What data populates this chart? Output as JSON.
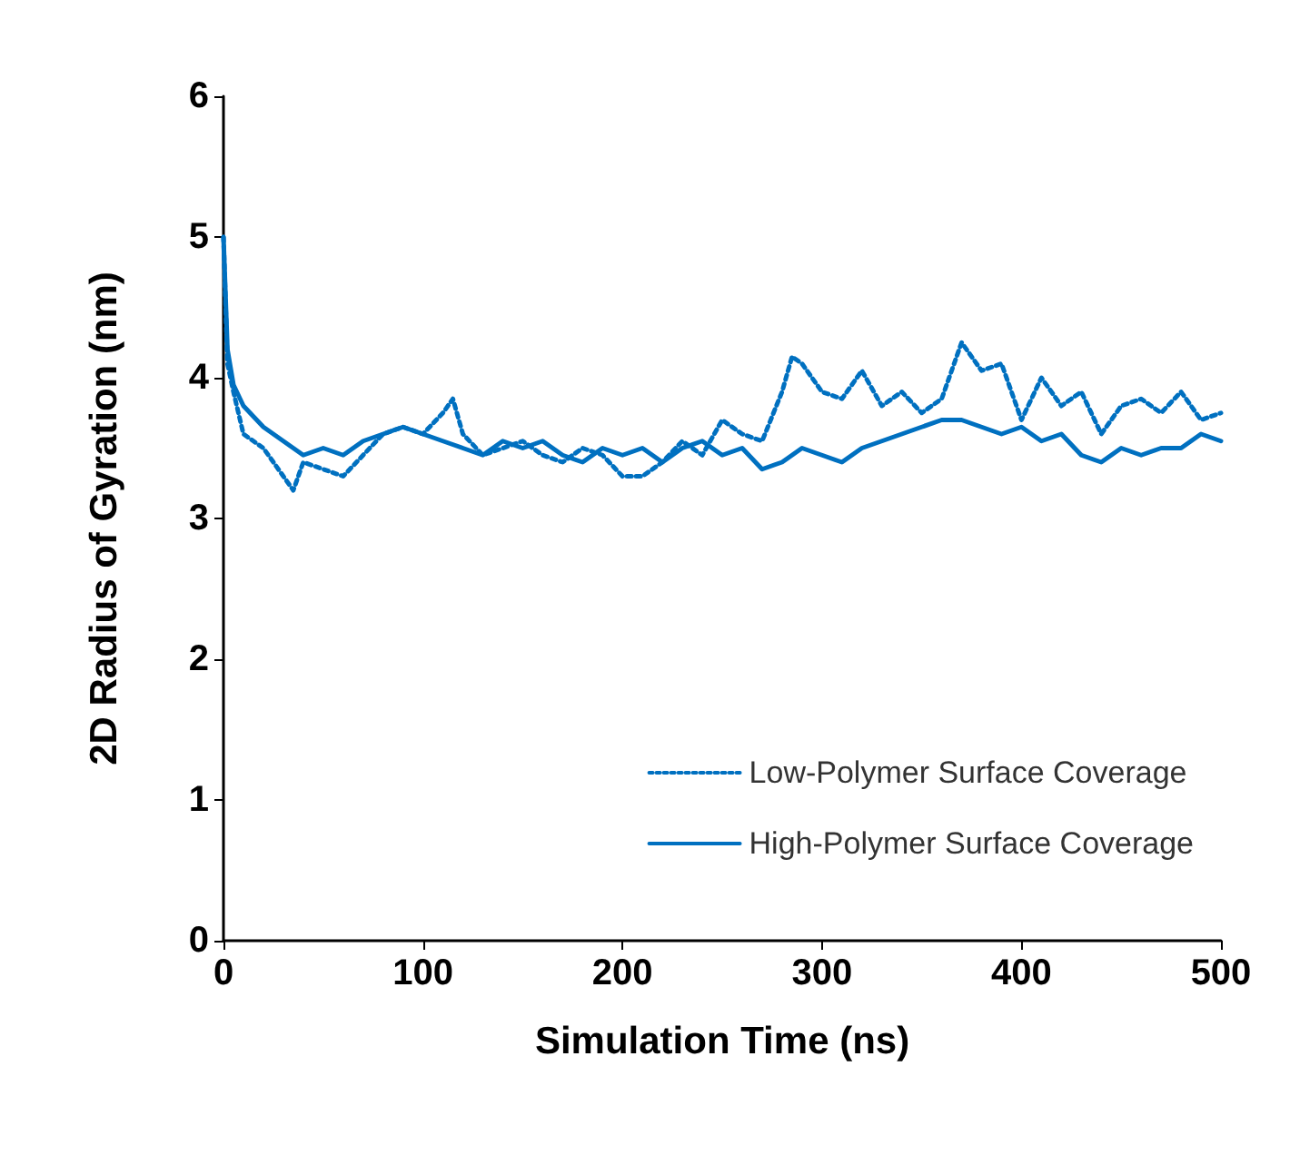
{
  "chart_data": {
    "type": "line",
    "xlabel": "Simulation Time (ns)",
    "ylabel": "2D Radius of Gyration (nm)",
    "xlim": [
      0,
      500
    ],
    "xticks": [
      0,
      100,
      200,
      300,
      400,
      500
    ],
    "ylim": [
      0,
      6
    ],
    "yticks": [
      0,
      1,
      2,
      3,
      4,
      5,
      6
    ],
    "grid": false,
    "legend": "bottom right",
    "marker": "none",
    "series": [
      {
        "name": "Low-Polymer Surface Coverage",
        "color": "#0070c0",
        "line_style": "dotted",
        "x": [
          0,
          2,
          5,
          10,
          20,
          30,
          35,
          40,
          50,
          60,
          70,
          80,
          90,
          100,
          110,
          115,
          120,
          130,
          140,
          150,
          160,
          170,
          180,
          190,
          200,
          210,
          220,
          230,
          240,
          250,
          260,
          270,
          280,
          285,
          290,
          300,
          310,
          320,
          330,
          340,
          350,
          360,
          370,
          380,
          390,
          400,
          410,
          420,
          430,
          440,
          450,
          460,
          470,
          480,
          490,
          500
        ],
        "values": [
          5.0,
          4.1,
          3.9,
          3.6,
          3.5,
          3.3,
          3.2,
          3.4,
          3.35,
          3.3,
          3.45,
          3.6,
          3.65,
          3.6,
          3.75,
          3.85,
          3.6,
          3.45,
          3.5,
          3.55,
          3.45,
          3.4,
          3.5,
          3.45,
          3.3,
          3.3,
          3.4,
          3.55,
          3.45,
          3.7,
          3.6,
          3.55,
          3.9,
          4.15,
          4.1,
          3.9,
          3.85,
          4.05,
          3.8,
          3.9,
          3.75,
          3.85,
          4.25,
          4.05,
          4.1,
          3.7,
          4.0,
          3.8,
          3.9,
          3.6,
          3.8,
          3.85,
          3.75,
          3.9,
          3.7,
          3.75
        ]
      },
      {
        "name": "High-Polymer Surface Coverage",
        "color": "#0070c0",
        "line_style": "solid",
        "x": [
          0,
          2,
          5,
          10,
          20,
          30,
          40,
          50,
          60,
          70,
          80,
          90,
          100,
          110,
          120,
          130,
          140,
          150,
          160,
          170,
          180,
          190,
          200,
          210,
          220,
          230,
          240,
          250,
          260,
          270,
          280,
          290,
          300,
          310,
          320,
          330,
          340,
          350,
          360,
          370,
          380,
          390,
          400,
          410,
          420,
          430,
          440,
          450,
          460,
          470,
          480,
          490,
          500
        ],
        "values": [
          5.0,
          4.2,
          3.95,
          3.8,
          3.65,
          3.55,
          3.45,
          3.5,
          3.45,
          3.55,
          3.6,
          3.65,
          3.6,
          3.55,
          3.5,
          3.45,
          3.55,
          3.5,
          3.55,
          3.45,
          3.4,
          3.5,
          3.45,
          3.5,
          3.4,
          3.5,
          3.55,
          3.45,
          3.5,
          3.35,
          3.4,
          3.5,
          3.45,
          3.4,
          3.5,
          3.55,
          3.6,
          3.65,
          3.7,
          3.7,
          3.65,
          3.6,
          3.65,
          3.55,
          3.6,
          3.45,
          3.4,
          3.5,
          3.45,
          3.5,
          3.5,
          3.6,
          3.55
        ]
      }
    ]
  }
}
